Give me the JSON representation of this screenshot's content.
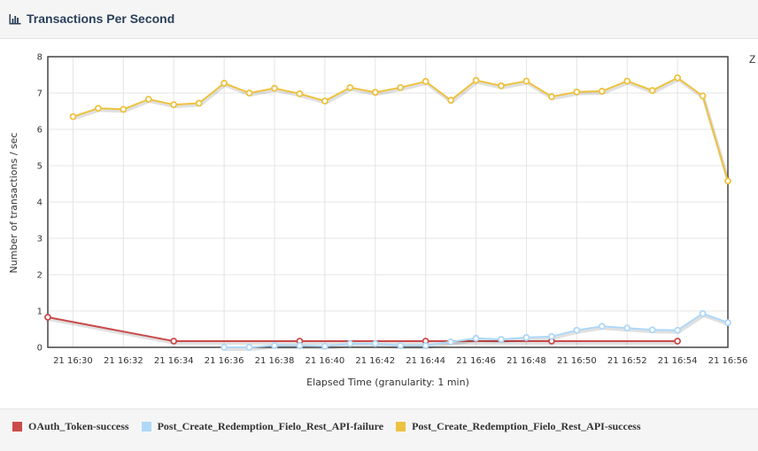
{
  "panel": {
    "title": "Transactions Per Second",
    "icon": "bar-chart-icon",
    "side_glyph": "Z"
  },
  "chart_data": {
    "type": "line",
    "xlabel": "Elapsed Time (granularity: 1 min)",
    "ylabel": "Number of transactions / sec",
    "ylim": [
      0,
      8
    ],
    "xlim": [
      "21 16:29",
      "21 16:56"
    ],
    "x_ticks": [
      "21 16:30",
      "21 16:32",
      "21 16:34",
      "21 16:36",
      "21 16:38",
      "21 16:40",
      "21 16:42",
      "21 16:44",
      "21 16:46",
      "21 16:48",
      "21 16:50",
      "21 16:52",
      "21 16:54",
      "21 16:56"
    ],
    "y_ticks": [
      0,
      1,
      2,
      3,
      4,
      5,
      6,
      7,
      8
    ],
    "grid": true,
    "legend_position": "bottom",
    "series": [
      {
        "name": "OAuth_Token-success",
        "color": "#cb4b4b",
        "x": [
          "21 16:29",
          "21 16:34",
          "21 16:39",
          "21 16:44",
          "21 16:49",
          "21 16:54"
        ],
        "values": [
          0.83,
          0.17,
          0.17,
          0.17,
          0.17,
          0.17
        ]
      },
      {
        "name": "Post_Create_Redemption_Fielo_Rest_API-failure",
        "color": "#afd8f8",
        "x": [
          "21 16:36",
          "21 16:37",
          "21 16:38",
          "21 16:39",
          "21 16:40",
          "21 16:41",
          "21 16:42",
          "21 16:43",
          "21 16:44",
          "21 16:45",
          "21 16:46",
          "21 16:47",
          "21 16:48",
          "21 16:49",
          "21 16:50",
          "21 16:51",
          "21 16:52",
          "21 16:53",
          "21 16:54",
          "21 16:55",
          "21 16:56"
        ],
        "values": [
          0.0,
          0.0,
          0.05,
          0.05,
          0.03,
          0.1,
          0.1,
          0.05,
          0.05,
          0.15,
          0.25,
          0.22,
          0.27,
          0.3,
          0.47,
          0.58,
          0.53,
          0.48,
          0.47,
          0.93,
          0.68
        ]
      },
      {
        "name": "Post_Create_Redemption_Fielo_Rest_API-success",
        "color": "#edc240",
        "x": [
          "21 16:30",
          "21 16:31",
          "21 16:32",
          "21 16:33",
          "21 16:34",
          "21 16:35",
          "21 16:36",
          "21 16:37",
          "21 16:38",
          "21 16:39",
          "21 16:40",
          "21 16:41",
          "21 16:42",
          "21 16:43",
          "21 16:44",
          "21 16:45",
          "21 16:46",
          "21 16:47",
          "21 16:48",
          "21 16:49",
          "21 16:50",
          "21 16:51",
          "21 16:52",
          "21 16:53",
          "21 16:54",
          "21 16:55",
          "21 16:56"
        ],
        "values": [
          6.35,
          6.58,
          6.55,
          6.83,
          6.68,
          6.72,
          7.27,
          7.0,
          7.13,
          6.98,
          6.78,
          7.15,
          7.02,
          7.15,
          7.32,
          6.8,
          7.35,
          7.2,
          7.33,
          6.9,
          7.03,
          7.05,
          7.33,
          7.07,
          7.42,
          6.92,
          4.58
        ]
      }
    ]
  }
}
